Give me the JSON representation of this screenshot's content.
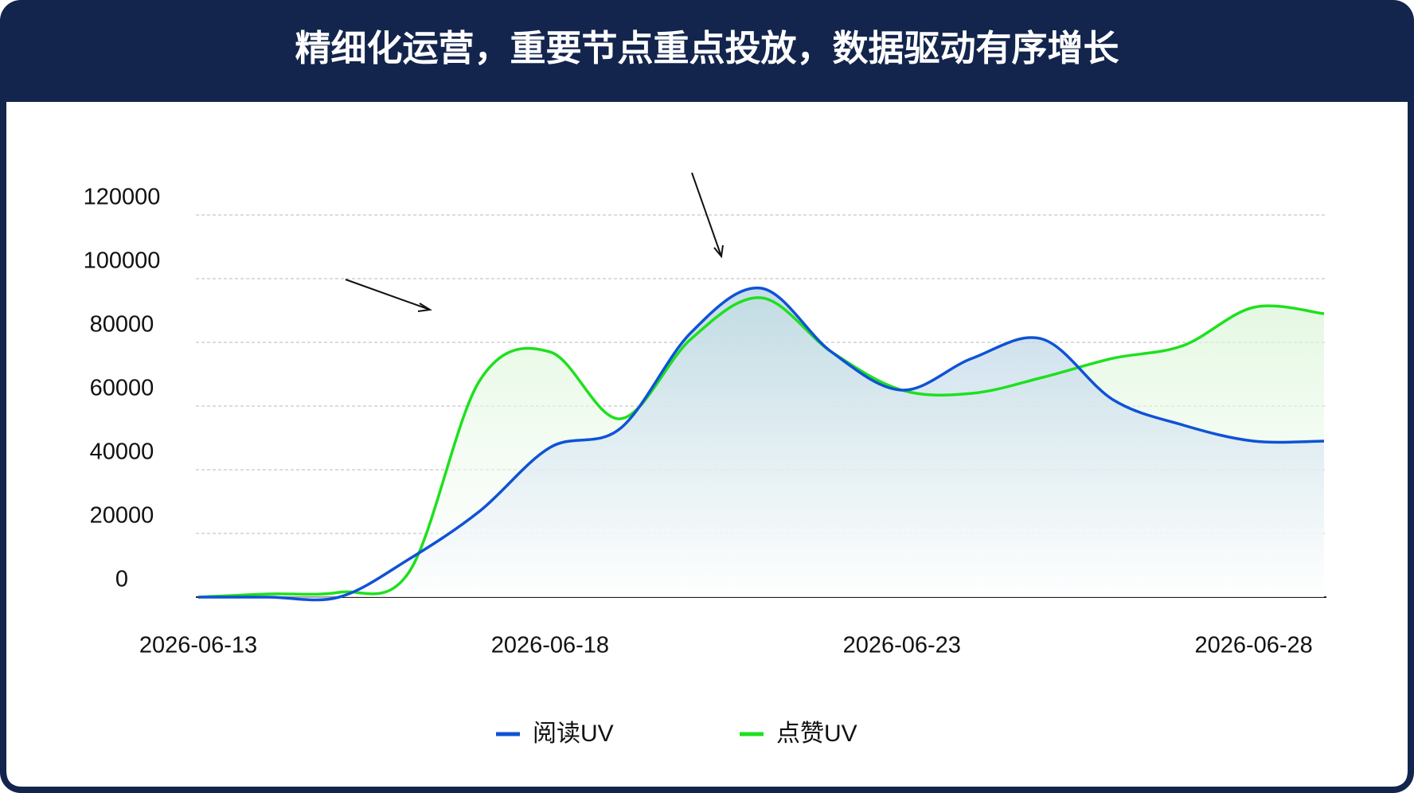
{
  "chart_data": {
    "type": "line",
    "title": "精细化运营，重要节点重点投放，数据驱动有序增长",
    "categories": [
      "2026-06-13",
      null,
      null,
      null,
      null,
      "2026-06-18",
      null,
      null,
      null,
      null,
      "2026-06-23",
      null,
      null,
      null,
      null,
      "2026-06-28",
      null
    ],
    "series": [
      {
        "name": "阅读UV",
        "color": "#0f52d6",
        "values": [
          0,
          0,
          0,
          12000,
          27000,
          47000,
          53000,
          83000,
          97000,
          77000,
          65000,
          75000,
          81000,
          62000,
          54000,
          49000,
          49000
        ]
      },
      {
        "name": "点赞UV",
        "color": "#1ee01e",
        "values": [
          0,
          1000,
          1500,
          8000,
          68000,
          77000,
          56000,
          81000,
          94000,
          77000,
          65000,
          64000,
          69000,
          75000,
          79000,
          91000,
          89000
        ]
      }
    ],
    "ylim": [
      0,
      120000
    ],
    "yticks": [
      0,
      20000,
      40000,
      60000,
      80000,
      100000,
      120000
    ],
    "grid": true
  }
}
